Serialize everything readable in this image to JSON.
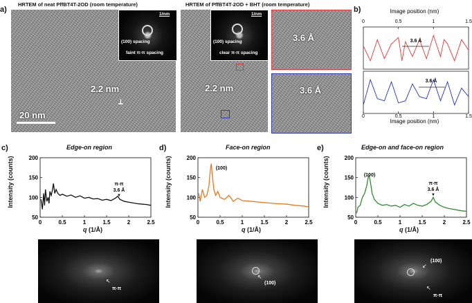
{
  "panel_a": {
    "label": "a)",
    "left_title": "HRTEM of neat PffBT4T-2OD (room temperature)",
    "right_title": "HRTEM of PffBT4T-2OD + BHT (room temperature)",
    "left_measure": "2.2 nm",
    "right_measure": "2.2 nm",
    "scale_bar": "20 nm",
    "left_inset": {
      "unit": "1/nm",
      "spacing": "(100) spacing",
      "pi": "faint π-π spacing"
    },
    "right_inset": {
      "unit": "1/nm",
      "spacing": "(100) spacing",
      "pi": "clear π-π spacing"
    },
    "zoom_red": "3.6 Å",
    "zoom_blue": "3.6 Å",
    "colors": {
      "red": "#e03a3a",
      "blue": "#2f3fb0"
    }
  },
  "panel_b": {
    "label": "b)",
    "top_xlabel": "Image position (nm)",
    "bottom_xlabel": "Image position (nm)",
    "xticks": [
      "0",
      "0.5",
      "1",
      "1.5"
    ],
    "top_annot": "3.6 Å",
    "bottom_annot": "3.6 Å"
  },
  "panel_c": {
    "label": "c)",
    "title": "Edge-on region",
    "annot1": "π-π",
    "annot2": "3.6 Å",
    "fft_label": "π-π"
  },
  "panel_d": {
    "label": "d)",
    "title": "Face-on region",
    "annot1": "(100)",
    "fft_label": "(100)"
  },
  "panel_e": {
    "label": "e)",
    "title": "Edge-on and face-on region",
    "annot1": "(100)",
    "annot2": "π-π",
    "annot3": "3.6 Å",
    "fft_label1": "(100)",
    "fft_label2": "π-π"
  },
  "axes": {
    "ylabel": "Intensity (counts)",
    "xlabel_q": "q",
    "xlabel_unit": " (1/Å)",
    "yticks": [
      "50",
      "100",
      "150",
      "200"
    ],
    "xticks": [
      "0",
      "0.5",
      "1",
      "1.5",
      "2",
      "2.5"
    ]
  },
  "chart_data": [
    {
      "type": "line",
      "panel": "b-top",
      "color": "#e53935",
      "x": [
        0,
        0.1,
        0.2,
        0.3,
        0.4,
        0.5,
        0.55,
        0.6,
        0.7,
        0.8,
        0.9,
        1.0,
        1.1,
        1.15,
        1.2,
        1.3,
        1.4,
        1.5
      ],
      "values": [
        0.55,
        0.2,
        0.7,
        0.25,
        0.6,
        0.75,
        0.2,
        0.65,
        0.3,
        0.7,
        0.25,
        0.8,
        0.3,
        0.7,
        0.6,
        0.2,
        0.7,
        0.45
      ]
    },
    {
      "type": "line",
      "panel": "b-bottom",
      "color": "#2233bb",
      "x": [
        0,
        0.1,
        0.2,
        0.3,
        0.4,
        0.5,
        0.6,
        0.7,
        0.8,
        0.9,
        1.0,
        1.1,
        1.2,
        1.3,
        1.4,
        1.5
      ],
      "values": [
        0.2,
        0.8,
        0.35,
        0.3,
        0.75,
        0.25,
        0.3,
        0.7,
        0.4,
        0.35,
        0.8,
        0.3,
        0.75,
        0.2,
        0.6,
        0.4
      ]
    },
    {
      "type": "line",
      "panel": "c",
      "color": "#111111",
      "xlim": [
        0,
        2.5
      ],
      "ylim": [
        50,
        200
      ],
      "x": [
        0.02,
        0.05,
        0.08,
        0.1,
        0.12,
        0.15,
        0.18,
        0.2,
        0.22,
        0.25,
        0.28,
        0.3,
        0.33,
        0.36,
        0.4,
        0.45,
        0.5,
        0.6,
        0.7,
        0.8,
        0.9,
        1.0,
        1.1,
        1.2,
        1.3,
        1.4,
        1.5,
        1.6,
        1.7,
        1.75,
        1.8,
        1.9,
        2.0,
        2.1,
        2.2,
        2.3,
        2.4,
        2.5
      ],
      "values": [
        95,
        70,
        110,
        80,
        120,
        90,
        100,
        85,
        115,
        105,
        120,
        135,
        110,
        120,
        110,
        105,
        108,
        103,
        106,
        100,
        104,
        98,
        100,
        96,
        97,
        93,
        95,
        92,
        98,
        103,
        95,
        90,
        88,
        86,
        84,
        83,
        82,
        80
      ]
    },
    {
      "type": "line",
      "panel": "d",
      "color": "#e8781e",
      "xlim": [
        0,
        2.5
      ],
      "ylim": [
        50,
        200
      ],
      "x": [
        0.02,
        0.05,
        0.1,
        0.15,
        0.2,
        0.25,
        0.28,
        0.3,
        0.33,
        0.36,
        0.4,
        0.45,
        0.5,
        0.6,
        0.7,
        0.8,
        0.9,
        1.0,
        1.2,
        1.4,
        1.6,
        1.8,
        2.0,
        2.2,
        2.4,
        2.5
      ],
      "values": [
        110,
        90,
        120,
        100,
        105,
        130,
        170,
        185,
        150,
        120,
        105,
        115,
        100,
        95,
        105,
        90,
        98,
        92,
        90,
        88,
        86,
        84,
        83,
        80,
        78,
        76
      ]
    },
    {
      "type": "line",
      "panel": "e",
      "color": "#2e8b2e",
      "xlim": [
        0,
        2.5
      ],
      "ylim": [
        50,
        200
      ],
      "x": [
        0.02,
        0.05,
        0.1,
        0.15,
        0.2,
        0.25,
        0.28,
        0.3,
        0.33,
        0.37,
        0.42,
        0.5,
        0.6,
        0.7,
        0.8,
        0.9,
        1.0,
        1.1,
        1.2,
        1.3,
        1.4,
        1.5,
        1.6,
        1.7,
        1.75,
        1.8,
        1.9,
        2.0,
        2.1,
        2.2,
        2.3,
        2.4,
        2.5
      ],
      "values": [
        60,
        75,
        80,
        100,
        110,
        130,
        150,
        155,
        140,
        110,
        95,
        85,
        80,
        82,
        78,
        80,
        75,
        82,
        78,
        85,
        80,
        78,
        82,
        90,
        100,
        88,
        80,
        75,
        72,
        70,
        68,
        66,
        65
      ]
    }
  ]
}
